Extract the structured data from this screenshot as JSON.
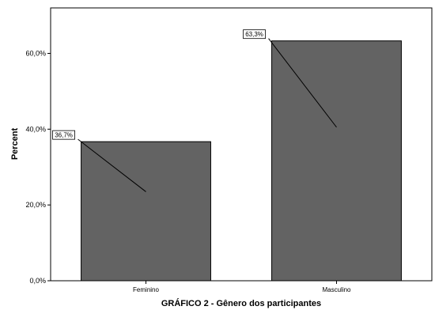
{
  "chart_data": {
    "type": "bar",
    "title": "GRÁFICO 2 - Gênero dos participantes",
    "ylabel": "Percent",
    "xlabel": "",
    "categories": [
      "Feminino",
      "Masculino"
    ],
    "values": [
      36.7,
      63.3
    ],
    "data_labels": [
      "36,7%",
      "63,3%"
    ],
    "ylim": [
      0,
      72
    ],
    "yticks": [
      0,
      20,
      40,
      60
    ],
    "ytick_labels": [
      "0,0%",
      "20,0%",
      "40,0%",
      "60,0%"
    ],
    "grid": false,
    "legend": "none",
    "bar_color": "#636363",
    "bar_edge_color": "#000000"
  }
}
